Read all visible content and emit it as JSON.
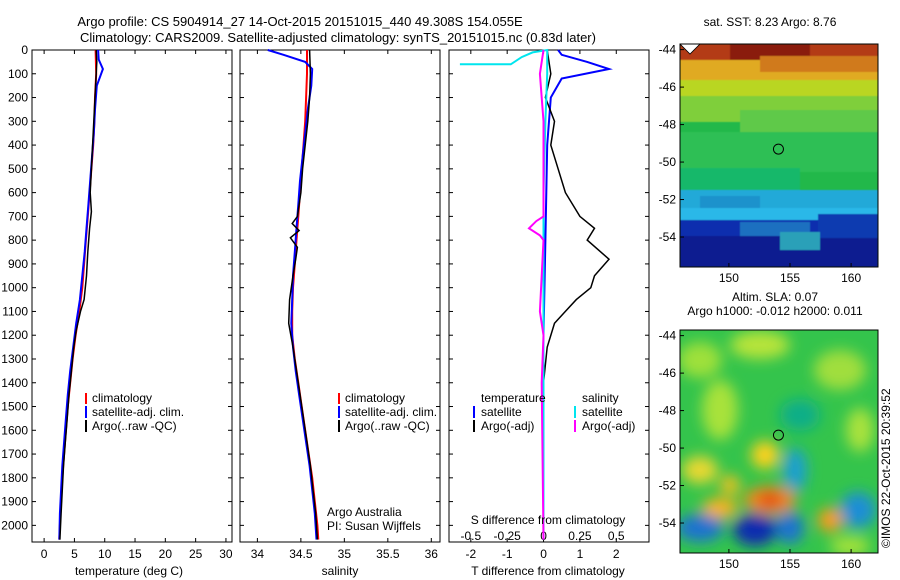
{
  "header": {
    "title_line1": "Argo profile: CS 5904914_27 14-Oct-2015 20151015_440 49.308S 154.055E",
    "title_line2": "Climatology: CARS2009. Satellite-adjusted climatology: synTS_20151015.nc (0.83d later)"
  },
  "colors": {
    "climatology": "#ff0000",
    "satellite": "#0000ff",
    "argo": "#000000",
    "sal_satellite": "#00e5ee",
    "sal_argo": "#ff00ff"
  },
  "chart_data": [
    {
      "type": "line",
      "name": "temperature",
      "xlabel": "temperature (deg C)",
      "ylabel": "",
      "xlim": [
        -2,
        31
      ],
      "ylim": [
        2070,
        0
      ],
      "xticks": [
        0,
        5,
        10,
        15,
        20,
        25,
        30
      ],
      "yticks": [
        0,
        100,
        200,
        300,
        400,
        500,
        600,
        700,
        800,
        900,
        1000,
        1100,
        1200,
        1300,
        1400,
        1500,
        1600,
        1700,
        1800,
        1900,
        2000
      ],
      "legend": [
        "climatology",
        "satellite-adj. clim.",
        "Argo(..raw -QC)"
      ],
      "series": [
        {
          "name": "climatology",
          "color": "#ff0000",
          "points": [
            [
              8.5,
              0
            ],
            [
              8.6,
              100
            ],
            [
              8.4,
              200
            ],
            [
              8.3,
              300
            ],
            [
              8.1,
              400
            ],
            [
              7.8,
              500
            ],
            [
              7.5,
              600
            ],
            [
              7.2,
              700
            ],
            [
              6.9,
              800
            ],
            [
              6.6,
              900
            ],
            [
              6.3,
              1000
            ],
            [
              5.8,
              1100
            ],
            [
              5.2,
              1200
            ],
            [
              4.7,
              1300
            ],
            [
              4.3,
              1400
            ],
            [
              3.9,
              1500
            ],
            [
              3.6,
              1600
            ],
            [
              3.3,
              1700
            ],
            [
              3.0,
              1800
            ],
            [
              2.8,
              1900
            ],
            [
              2.6,
              2000
            ],
            [
              2.5,
              2060
            ]
          ]
        },
        {
          "name": "satellite-adj. clim.",
          "color": "#0000ff",
          "points": [
            [
              8.9,
              0
            ],
            [
              9.0,
              40
            ],
            [
              9.7,
              80
            ],
            [
              8.7,
              150
            ],
            [
              8.4,
              250
            ],
            [
              8.2,
              350
            ],
            [
              7.9,
              450
            ],
            [
              7.6,
              550
            ],
            [
              7.3,
              650
            ],
            [
              7.0,
              750
            ],
            [
              6.7,
              850
            ],
            [
              6.3,
              950
            ],
            [
              5.9,
              1050
            ],
            [
              5.3,
              1150
            ],
            [
              4.8,
              1250
            ],
            [
              4.3,
              1350
            ],
            [
              3.9,
              1450
            ],
            [
              3.6,
              1550
            ],
            [
              3.3,
              1650
            ],
            [
              3.0,
              1750
            ],
            [
              2.8,
              1850
            ],
            [
              2.6,
              1950
            ],
            [
              2.5,
              2060
            ]
          ]
        },
        {
          "name": "Argo(..raw -QC)",
          "color": "#000000",
          "points": [
            [
              8.6,
              0
            ],
            [
              8.7,
              50
            ],
            [
              8.5,
              150
            ],
            [
              8.2,
              300
            ],
            [
              7.9,
              450
            ],
            [
              7.6,
              600
            ],
            [
              7.8,
              680
            ],
            [
              7.5,
              750
            ],
            [
              7.2,
              850
            ],
            [
              7.0,
              950
            ],
            [
              6.6,
              1050
            ],
            [
              6.0,
              1100
            ],
            [
              5.3,
              1180
            ],
            [
              4.9,
              1250
            ],
            [
              4.5,
              1350
            ],
            [
              4.1,
              1450
            ],
            [
              3.8,
              1550
            ],
            [
              3.5,
              1650
            ],
            [
              3.2,
              1750
            ],
            [
              3.0,
              1850
            ],
            [
              2.8,
              1950
            ],
            [
              2.6,
              2060
            ]
          ]
        }
      ]
    },
    {
      "type": "line",
      "name": "salinity",
      "xlabel": "salinity",
      "ylabel": "",
      "xlim": [
        33.8,
        36.1
      ],
      "ylim": [
        2070,
        0
      ],
      "xticks": [
        34,
        34.5,
        35,
        35.5,
        36
      ],
      "legend": [
        "climatology",
        "satellite-adj. clim.",
        "Argo(..raw -QC)"
      ],
      "annotation": [
        "Argo Australia",
        "PI: Susan Wijffels"
      ],
      "series": [
        {
          "name": "climatology",
          "color": "#ff0000",
          "points": [
            [
              34.57,
              0
            ],
            [
              34.57,
              100
            ],
            [
              34.56,
              200
            ],
            [
              34.55,
              300
            ],
            [
              34.53,
              400
            ],
            [
              34.51,
              500
            ],
            [
              34.49,
              600
            ],
            [
              34.47,
              700
            ],
            [
              34.45,
              800
            ],
            [
              34.43,
              900
            ],
            [
              34.41,
              1000
            ],
            [
              34.4,
              1100
            ],
            [
              34.4,
              1200
            ],
            [
              34.43,
              1300
            ],
            [
              34.47,
              1400
            ],
            [
              34.51,
              1500
            ],
            [
              34.55,
              1600
            ],
            [
              34.59,
              1700
            ],
            [
              34.63,
              1800
            ],
            [
              34.66,
              1900
            ],
            [
              34.69,
              2000
            ],
            [
              34.7,
              2060
            ]
          ]
        },
        {
          "name": "satellite-adj. clim.",
          "color": "#0000ff",
          "points": [
            [
              34.12,
              0
            ],
            [
              34.3,
              20
            ],
            [
              34.55,
              50
            ],
            [
              34.63,
              80
            ],
            [
              34.62,
              150
            ],
            [
              34.58,
              250
            ],
            [
              34.55,
              350
            ],
            [
              34.52,
              450
            ],
            [
              34.49,
              550
            ],
            [
              34.47,
              650
            ],
            [
              34.45,
              750
            ],
            [
              34.43,
              850
            ],
            [
              34.41,
              950
            ],
            [
              34.4,
              1050
            ],
            [
              34.39,
              1150
            ],
            [
              34.41,
              1250
            ],
            [
              34.44,
              1350
            ],
            [
              34.48,
              1450
            ],
            [
              34.52,
              1550
            ],
            [
              34.56,
              1650
            ],
            [
              34.6,
              1750
            ],
            [
              34.63,
              1850
            ],
            [
              34.66,
              1950
            ],
            [
              34.68,
              2060
            ]
          ]
        },
        {
          "name": "Argo(..raw -QC)",
          "color": "#000000",
          "points": [
            [
              34.6,
              0
            ],
            [
              34.61,
              100
            ],
            [
              34.6,
              200
            ],
            [
              34.58,
              300
            ],
            [
              34.55,
              400
            ],
            [
              34.52,
              500
            ],
            [
              34.5,
              600
            ],
            [
              34.46,
              700
            ],
            [
              34.4,
              730
            ],
            [
              34.48,
              760
            ],
            [
              34.38,
              790
            ],
            [
              34.46,
              830
            ],
            [
              34.44,
              880
            ],
            [
              34.41,
              950
            ],
            [
              34.37,
              1050
            ],
            [
              34.36,
              1150
            ],
            [
              34.41,
              1250
            ],
            [
              34.45,
              1350
            ],
            [
              34.49,
              1450
            ],
            [
              34.53,
              1550
            ],
            [
              34.57,
              1650
            ],
            [
              34.61,
              1750
            ],
            [
              34.64,
              1850
            ],
            [
              34.67,
              1950
            ],
            [
              34.69,
              2060
            ]
          ]
        }
      ]
    },
    {
      "type": "line",
      "name": "difference",
      "xlabel": "T difference from climatology",
      "xlabel_top": "S difference from climatology",
      "xlim": [
        -2.6,
        2.9
      ],
      "ylim": [
        2070,
        0
      ],
      "xticks": [
        -2,
        -1,
        0,
        1,
        2
      ],
      "xticklabels_s": [
        "-0.5",
        "-0.25",
        "0",
        "0.25",
        "0.5"
      ],
      "xticks_s": [
        -2,
        -1,
        0,
        1,
        2
      ],
      "legend_temperature": {
        "title": "temperature",
        "items": [
          "satellite",
          "Argo(-adj)"
        ]
      },
      "legend_salinity": {
        "title": "salinity",
        "items": [
          "satellite",
          "Argo(-adj)"
        ]
      },
      "series": [
        {
          "name": "temperature satellite",
          "color": "#0000ff",
          "points": [
            [
              0.4,
              0
            ],
            [
              0.5,
              20
            ],
            [
              1.2,
              50
            ],
            [
              1.8,
              80
            ],
            [
              0.5,
              120
            ],
            [
              0.2,
              200
            ],
            [
              0.1,
              400
            ],
            [
              0.05,
              800
            ],
            [
              0,
              1200
            ],
            [
              0,
              2060
            ]
          ]
        },
        {
          "name": "temperature Argo(-adj)",
          "color": "#000000",
          "points": [
            [
              0.1,
              0
            ],
            [
              0.2,
              100
            ],
            [
              0.05,
              200
            ],
            [
              0.3,
              300
            ],
            [
              0.2,
              400
            ],
            [
              0.4,
              500
            ],
            [
              0.6,
              600
            ],
            [
              1.0,
              700
            ],
            [
              1.4,
              750
            ],
            [
              1.2,
              800
            ],
            [
              1.8,
              880
            ],
            [
              1.4,
              950
            ],
            [
              1.3,
              1000
            ],
            [
              0.9,
              1050
            ],
            [
              0.6,
              1100
            ],
            [
              0.3,
              1150
            ],
            [
              0.1,
              1250
            ],
            [
              0,
              1400
            ],
            [
              0,
              2060
            ]
          ]
        },
        {
          "name": "salinity satellite",
          "color": "#00e5ee",
          "points": [
            [
              -2.3,
              60
            ],
            [
              -0.9,
              60
            ],
            [
              -0.6,
              30
            ],
            [
              -0.3,
              10
            ],
            [
              0.1,
              0
            ],
            [
              0.1,
              100
            ],
            [
              0.05,
              300
            ],
            [
              0,
              600
            ],
            [
              0,
              2060
            ]
          ]
        },
        {
          "name": "salinity Argo(-adj)",
          "color": "#ff00ff",
          "points": [
            [
              0,
              0
            ],
            [
              -0.1,
              100
            ],
            [
              0,
              300
            ],
            [
              0,
              700
            ],
            [
              -0.2,
              720
            ],
            [
              -0.4,
              750
            ],
            [
              -0.1,
              780
            ],
            [
              0,
              800
            ],
            [
              -0.1,
              1100
            ],
            [
              0,
              1200
            ],
            [
              -0.05,
              1400
            ],
            [
              0,
              2060
            ]
          ]
        }
      ]
    },
    {
      "type": "heatmap",
      "name": "sst map",
      "title": "sat. SST: 8.23 Argo: 8.76",
      "xlim": [
        146,
        162.2
      ],
      "ylim": [
        -55.6,
        -43.7
      ],
      "xticks": [
        150,
        155,
        160
      ],
      "yticks": [
        -44,
        -46,
        -48,
        -50,
        -52,
        -54
      ],
      "marker": {
        "lon": 154.055,
        "lat": -49.308
      }
    },
    {
      "type": "heatmap",
      "name": "sla map",
      "title_line1": "Altim. SLA: 0.07",
      "title_line2": "Argo h1000: -0.012 h2000: 0.011",
      "xlim": [
        146,
        162.2
      ],
      "ylim": [
        -55.6,
        -43.7
      ],
      "xticks": [
        150,
        155,
        160
      ],
      "yticks": [
        -44,
        -46,
        -48,
        -50,
        -52,
        -54
      ],
      "marker": {
        "lon": 154.055,
        "lat": -49.308
      },
      "watermark": "©IMOS 22-Oct-2015 20:39:52"
    }
  ]
}
